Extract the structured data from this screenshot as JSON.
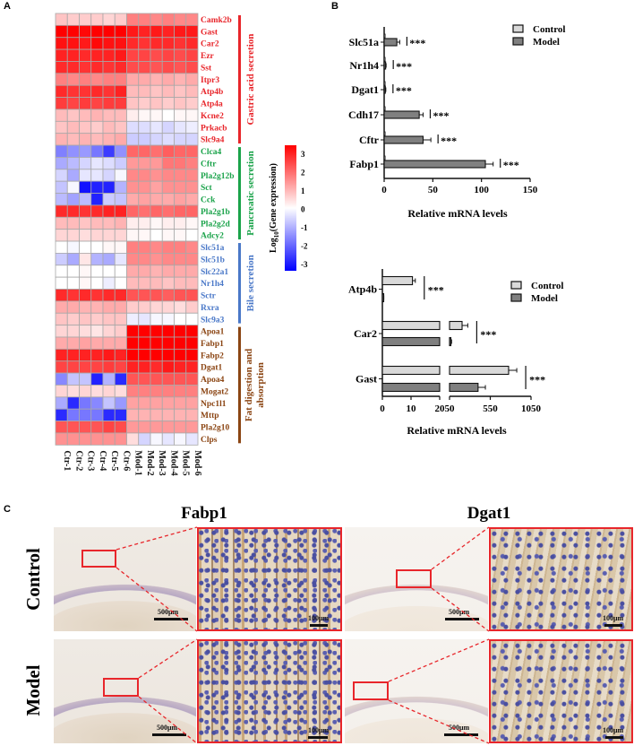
{
  "panel_labels": {
    "a": "A",
    "b": "B",
    "c": "C"
  },
  "colors": {
    "low": "#0000ff",
    "mid": "#ffffff",
    "high": "#ff0000",
    "grid": "#a8a8a8",
    "gastric": "#e8262b",
    "pancreatic": "#1aa34a",
    "bile": "#4a78c8",
    "fat": "#8b4513",
    "control_bar": "#d9d9d9",
    "model_bar": "#808080",
    "roi": "#e8262b"
  },
  "chart_data": [
    {
      "type": "heatmap",
      "title": "",
      "colorbar": {
        "label_prefix": "Log",
        "label_sub": "10",
        "label_suffix": "(Gene expression)",
        "range": [
          -3,
          3
        ],
        "ticks": [
          "3",
          "2",
          "1",
          "0",
          "-1",
          "-2",
          "-3"
        ]
      },
      "columns": [
        "Ctr-1",
        "Ctr-2",
        "Ctr-3",
        "Ctr-4",
        "Ctr-5",
        "Ctr-6",
        "Mod-1",
        "Mod-2",
        "Mod-3",
        "Mod-4",
        "Mod-5",
        "Mod-6"
      ],
      "groups": [
        {
          "name": "Gastric acid secretion",
          "color_key": "gastric",
          "rows": [
            {
              "gene": "Camk2b",
              "values": [
                0.7,
                0.6,
                0.6,
                0.6,
                0.5,
                0.6,
                1.5,
                1.5,
                1.4,
                1.5,
                1.4,
                1.4
              ]
            },
            {
              "gene": "Gast",
              "values": [
                3.0,
                3.0,
                2.9,
                3.0,
                3.0,
                3.0,
                2.7,
                2.6,
                2.7,
                2.6,
                2.7,
                2.7
              ]
            },
            {
              "gene": "Car2",
              "values": [
                2.8,
                2.8,
                2.7,
                2.9,
                2.8,
                2.8,
                2.5,
                2.4,
                2.5,
                2.5,
                2.4,
                2.5
              ]
            },
            {
              "gene": "Ezr",
              "values": [
                2.6,
                2.6,
                2.5,
                2.6,
                2.6,
                2.7,
                2.2,
                2.2,
                2.1,
                2.2,
                2.1,
                2.2
              ]
            },
            {
              "gene": "Sst",
              "values": [
                2.5,
                2.5,
                2.4,
                2.5,
                2.4,
                2.5,
                2.1,
                2.1,
                2.0,
                2.1,
                2.0,
                2.1
              ]
            },
            {
              "gene": "Itpr3",
              "values": [
                1.5,
                1.4,
                1.5,
                1.4,
                1.5,
                1.5,
                1.0,
                1.0,
                0.9,
                1.0,
                0.9,
                1.0
              ]
            },
            {
              "gene": "Atp4b",
              "values": [
                2.5,
                2.4,
                2.4,
                2.5,
                2.4,
                2.6,
                0.8,
                0.8,
                0.7,
                0.8,
                0.7,
                0.8
              ]
            },
            {
              "gene": "Atp4a",
              "values": [
                2.3,
                2.2,
                2.3,
                2.2,
                2.3,
                2.3,
                0.7,
                0.6,
                0.7,
                0.6,
                0.7,
                0.6
              ]
            },
            {
              "gene": "Kcne2",
              "values": [
                0.8,
                0.7,
                0.8,
                0.9,
                0.8,
                0.8,
                0.2,
                0.1,
                0.1,
                0.0,
                0.1,
                0.1
              ]
            },
            {
              "gene": "Prkacb",
              "values": [
                0.7,
                0.8,
                0.7,
                0.6,
                0.8,
                0.7,
                -0.4,
                -0.4,
                -0.3,
                -0.5,
                -0.3,
                -0.2
              ]
            },
            {
              "gene": "Slc9a4",
              "values": [
                0.9,
                0.8,
                0.9,
                0.8,
                0.9,
                1.0,
                -0.6,
                -0.6,
                -0.5,
                -0.4,
                -0.5,
                -0.5
              ]
            }
          ]
        },
        {
          "name": "Pancreatic secretion",
          "color_key": "pancreatic",
          "rows": [
            {
              "gene": "Clca4",
              "values": [
                -1.5,
                -1.3,
                -1.2,
                -1.6,
                -2.3,
                -1.3,
                1.8,
                1.8,
                1.7,
                1.9,
                1.8,
                1.8
              ]
            },
            {
              "gene": "Cftr",
              "values": [
                -1.0,
                -0.8,
                -0.5,
                -0.3,
                -0.4,
                -0.6,
                1.2,
                1.2,
                1.2,
                1.6,
                1.6,
                1.5
              ]
            },
            {
              "gene": "Pla2g12b",
              "values": [
                -0.5,
                -1.0,
                -0.3,
                -0.3,
                -0.5,
                -0.1,
                1.4,
                1.4,
                1.3,
                1.4,
                1.4,
                1.4
              ]
            },
            {
              "gene": "Sct",
              "values": [
                -0.7,
                -0.1,
                -2.8,
                -2.6,
                -2.6,
                -0.9,
                1.3,
                1.3,
                1.1,
                1.3,
                1.3,
                1.3
              ]
            },
            {
              "gene": "Cck",
              "values": [
                -0.8,
                -1.1,
                -0.8,
                -2.6,
                -0.6,
                -0.7,
                1.0,
                1.1,
                1.0,
                1.0,
                1.1,
                1.0
              ]
            },
            {
              "gene": "Pla2g1b",
              "values": [
                2.5,
                2.5,
                2.4,
                2.5,
                2.6,
                2.6,
                1.8,
                1.7,
                1.8,
                1.7,
                1.8,
                1.8
              ]
            },
            {
              "gene": "Pla2g2d",
              "values": [
                0.8,
                0.8,
                0.7,
                0.8,
                0.8,
                0.9,
                0.2,
                0.2,
                0.1,
                0.2,
                0.2,
                0.1
              ]
            },
            {
              "gene": "Adcy2",
              "values": [
                0.5,
                0.5,
                0.4,
                0.5,
                0.5,
                0.5,
                0.1,
                0.1,
                0.0,
                0.1,
                0.1,
                0.0
              ]
            }
          ]
        },
        {
          "name": "Bile secretion",
          "color_key": "bile",
          "rows": [
            {
              "gene": "Slc51a",
              "values": [
                0.0,
                -0.1,
                0.0,
                0.0,
                0.1,
                0.1,
                1.5,
                1.5,
                1.4,
                1.5,
                1.5,
                1.4
              ]
            },
            {
              "gene": "Slc51b",
              "values": [
                -0.6,
                -1.0,
                0.3,
                -0.9,
                -1.0,
                -0.3,
                1.4,
                1.4,
                1.3,
                1.4,
                1.4,
                1.4
              ]
            },
            {
              "gene": "Slc22a1",
              "values": [
                0.0,
                0.0,
                0.1,
                0.0,
                0.0,
                0.0,
                1.0,
                1.0,
                0.9,
                1.0,
                1.0,
                1.0
              ]
            },
            {
              "gene": "Nr1h4",
              "values": [
                0.0,
                0.0,
                0.1,
                0.0,
                -0.2,
                0.0,
                0.8,
                0.8,
                0.8,
                0.7,
                0.8,
                0.8
              ]
            },
            {
              "gene": "Sctr",
              "values": [
                2.5,
                2.4,
                2.5,
                2.4,
                2.5,
                2.5,
                2.0,
                2.0,
                2.0,
                1.9,
                2.0,
                2.0
              ]
            },
            {
              "gene": "Rxra",
              "values": [
                1.0,
                1.0,
                0.9,
                0.9,
                1.0,
                1.0,
                0.6,
                0.6,
                0.5,
                0.5,
                0.4,
                0.6
              ]
            },
            {
              "gene": "Slc9a3",
              "values": [
                0.7,
                0.6,
                0.7,
                0.6,
                0.7,
                0.7,
                -0.2,
                -0.3,
                -0.1,
                -0.1,
                0.0,
                0.0
              ]
            }
          ]
        },
        {
          "name": "Fat digestion and absorption",
          "color_key": "fat",
          "rows": [
            {
              "gene": "Apoa1",
              "values": [
                0.5,
                0.5,
                0.4,
                0.3,
                0.5,
                0.6,
                3.3,
                3.3,
                3.3,
                3.3,
                3.3,
                3.3
              ]
            },
            {
              "gene": "Fabp1",
              "values": [
                1.0,
                1.0,
                1.1,
                1.0,
                1.0,
                1.0,
                3.3,
                3.3,
                3.3,
                3.3,
                3.3,
                3.3
              ]
            },
            {
              "gene": "Fabp2",
              "values": [
                2.6,
                2.6,
                2.6,
                2.6,
                2.7,
                2.6,
                3.2,
                3.2,
                3.2,
                3.2,
                3.2,
                3.2
              ]
            },
            {
              "gene": "Dgat1",
              "values": [
                2.2,
                2.2,
                2.2,
                2.2,
                2.3,
                2.2,
                2.6,
                2.6,
                2.5,
                2.7,
                2.6,
                2.6
              ]
            },
            {
              "gene": "Apoa4",
              "values": [
                -1.4,
                -0.7,
                -0.7,
                -2.6,
                -0.9,
                -2.5,
                2.0,
                2.0,
                2.0,
                2.0,
                2.0,
                2.0
              ]
            },
            {
              "gene": "Mogat2",
              "values": [
                0.5,
                0.4,
                0.5,
                0.4,
                0.5,
                0.4,
                1.5,
                1.5,
                1.5,
                1.5,
                1.5,
                1.5
              ]
            },
            {
              "gene": "Npc1l1",
              "values": [
                -1.0,
                -2.5,
                -1.6,
                -1.4,
                -0.7,
                -1.2,
                1.1,
                1.1,
                1.1,
                1.1,
                1.1,
                1.1
              ]
            },
            {
              "gene": "Mttp",
              "values": [
                -2.5,
                -1.6,
                -1.6,
                -1.6,
                -2.5,
                -2.5,
                0.9,
                0.9,
                0.9,
                0.9,
                0.9,
                0.9
              ]
            },
            {
              "gene": "Pla2g10",
              "values": [
                2.0,
                2.0,
                2.0,
                2.0,
                2.2,
                2.1,
                1.2,
                1.2,
                1.2,
                1.2,
                1.2,
                1.2
              ]
            },
            {
              "gene": "Clps",
              "values": [
                1.3,
                1.3,
                1.3,
                1.3,
                1.3,
                1.3,
                0.4,
                -0.5,
                -0.1,
                -0.3,
                -0.1,
                -0.3
              ]
            }
          ]
        }
      ]
    },
    {
      "type": "bar",
      "orientation": "horizontal",
      "categories": [
        "Slc51a",
        "Nr1h4",
        "Dgat1",
        "Cdh17",
        "Cftr",
        "Fabp1"
      ],
      "series": [
        {
          "name": "Control",
          "values": [
            1,
            1,
            1,
            1,
            1,
            1
          ],
          "errors": [
            0.3,
            0.3,
            0.3,
            0.3,
            0.3,
            0.3
          ]
        },
        {
          "name": "Model",
          "values": [
            13,
            1.5,
            1.2,
            36,
            40,
            104
          ],
          "errors": [
            3,
            0.5,
            0.5,
            4,
            8,
            8
          ]
        }
      ],
      "significance": [
        "***",
        "***",
        "***",
        "***",
        "***",
        "***"
      ],
      "xlabel": "Relative mRNA levels",
      "xlim": [
        0,
        150
      ],
      "xticks": [
        "0",
        "50",
        "100",
        "150"
      ],
      "legend": "top-right"
    },
    {
      "type": "bar",
      "orientation": "horizontal",
      "axis_break": {
        "segment1": [
          0,
          20
        ],
        "segment2": [
          50,
          1050
        ]
      },
      "categories": [
        "Atp4b",
        "Car2",
        "Gast"
      ],
      "series": [
        {
          "name": "Control",
          "values": [
            10.5,
            204,
            775
          ],
          "errors": [
            1,
            70,
            100
          ]
        },
        {
          "name": "Model",
          "values": [
            0.3,
            65,
            400
          ],
          "errors": [
            0.2,
            10,
            90
          ]
        }
      ],
      "significance": [
        "***",
        "***",
        "***"
      ],
      "xlabel": "Relative mRNA levels",
      "xticks": [
        "0",
        "10",
        "20",
        "50",
        "550",
        "1050"
      ],
      "legend": "top-right"
    }
  ],
  "ihc": {
    "columns": [
      "Fabp1",
      "Dgat1"
    ],
    "rows": [
      "Control",
      "Model"
    ],
    "scale_low": "500μm",
    "scale_high": "100μm"
  }
}
